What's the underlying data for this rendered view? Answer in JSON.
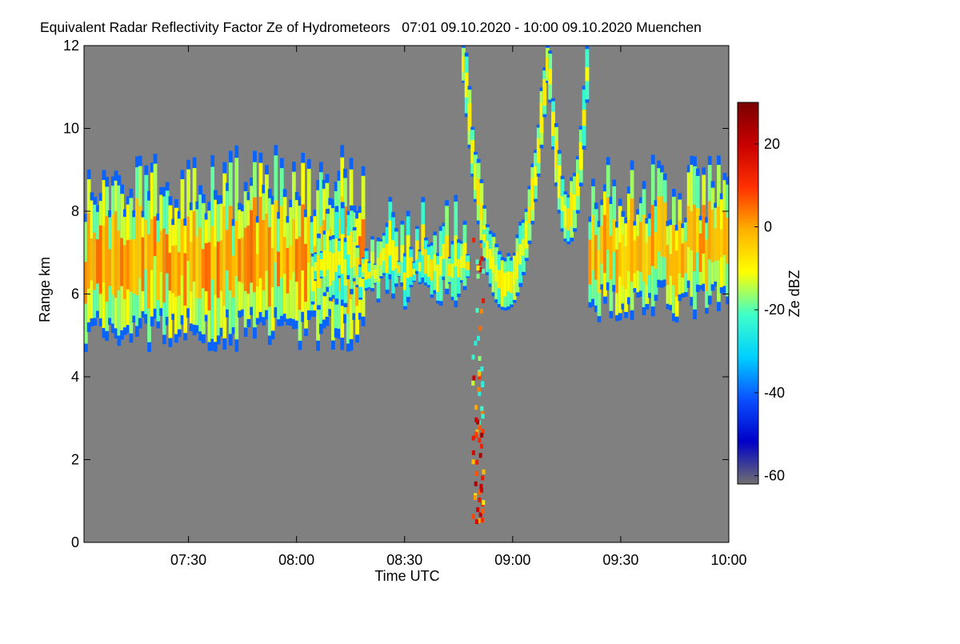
{
  "chart_data": {
    "type": "heatmap",
    "title": "Equivalent Radar Reflectivity Factor Ze of Hydrometeors   07:01 09.10.2020 - 10:00 09.10.2020 Muenchen",
    "xlabel": "Time UTC",
    "ylabel": "Range km",
    "x_unit": "minutes since 07:00 UTC",
    "xlim": [
      1,
      180
    ],
    "ylim": [
      0,
      12
    ],
    "xticks": [
      {
        "value": 30,
        "label": "07:30"
      },
      {
        "value": 60,
        "label": "08:00"
      },
      {
        "value": 90,
        "label": "08:30"
      },
      {
        "value": 120,
        "label": "09:00"
      },
      {
        "value": 150,
        "label": "09:30"
      },
      {
        "value": 180,
        "label": "10:00"
      }
    ],
    "yticks": [
      {
        "value": 0,
        "label": "0"
      },
      {
        "value": 2,
        "label": "2"
      },
      {
        "value": 4,
        "label": "4"
      },
      {
        "value": 6,
        "label": "6"
      },
      {
        "value": 8,
        "label": "8"
      },
      {
        "value": 10,
        "label": "10"
      },
      {
        "value": 12,
        "label": "12"
      }
    ],
    "colorbar": {
      "label": "Ze dBZ",
      "range": [
        -62,
        30
      ],
      "ticks": [
        {
          "value": 20,
          "label": "20"
        },
        {
          "value": 0,
          "label": "0"
        },
        {
          "value": -20,
          "label": "-20"
        },
        {
          "value": -40,
          "label": "-40"
        },
        {
          "value": -60,
          "label": "-60"
        }
      ],
      "colors": [
        "#707070",
        "#0000c8",
        "#0a50ff",
        "#00d0ff",
        "#40ffc8",
        "#ffff00",
        "#ffb000",
        "#ff3000",
        "#c80000",
        "#7a0000"
      ]
    },
    "background_color": "#808080",
    "features": [
      {
        "name": "cloud-layer-west",
        "t": [
          1,
          78
        ],
        "base_km": 4.6,
        "top_km": 9.6,
        "peak_dBZ": 8,
        "mean_dBZ": -15
      },
      {
        "name": "cloud-layer-mid",
        "t": [
          64,
          107
        ],
        "base_km": 5.6,
        "top_km": 8.5,
        "peak_dBZ": -5,
        "mean_dBZ": -20
      },
      {
        "name": "fall-streak-arc-1",
        "t": [
          105,
          130
        ],
        "base_km": 5.6,
        "top_km": 12,
        "peak_dBZ": -5,
        "mean_dBZ": -18
      },
      {
        "name": "fall-streak-arc-2",
        "t": [
          129,
          141
        ],
        "base_km": 7.2,
        "top_km": 12,
        "peak_dBZ": -5,
        "mean_dBZ": -18
      },
      {
        "name": "cloud-layer-east",
        "t": [
          141,
          180
        ],
        "base_km": 5.3,
        "top_km": 9.4,
        "peak_dBZ": 5,
        "mean_dBZ": -15
      },
      {
        "name": "precip-column",
        "t": [
          109,
          112
        ],
        "base_km": 0.5,
        "top_km": 7.5,
        "peak_dBZ": 25,
        "mean_dBZ": -10
      }
    ]
  }
}
